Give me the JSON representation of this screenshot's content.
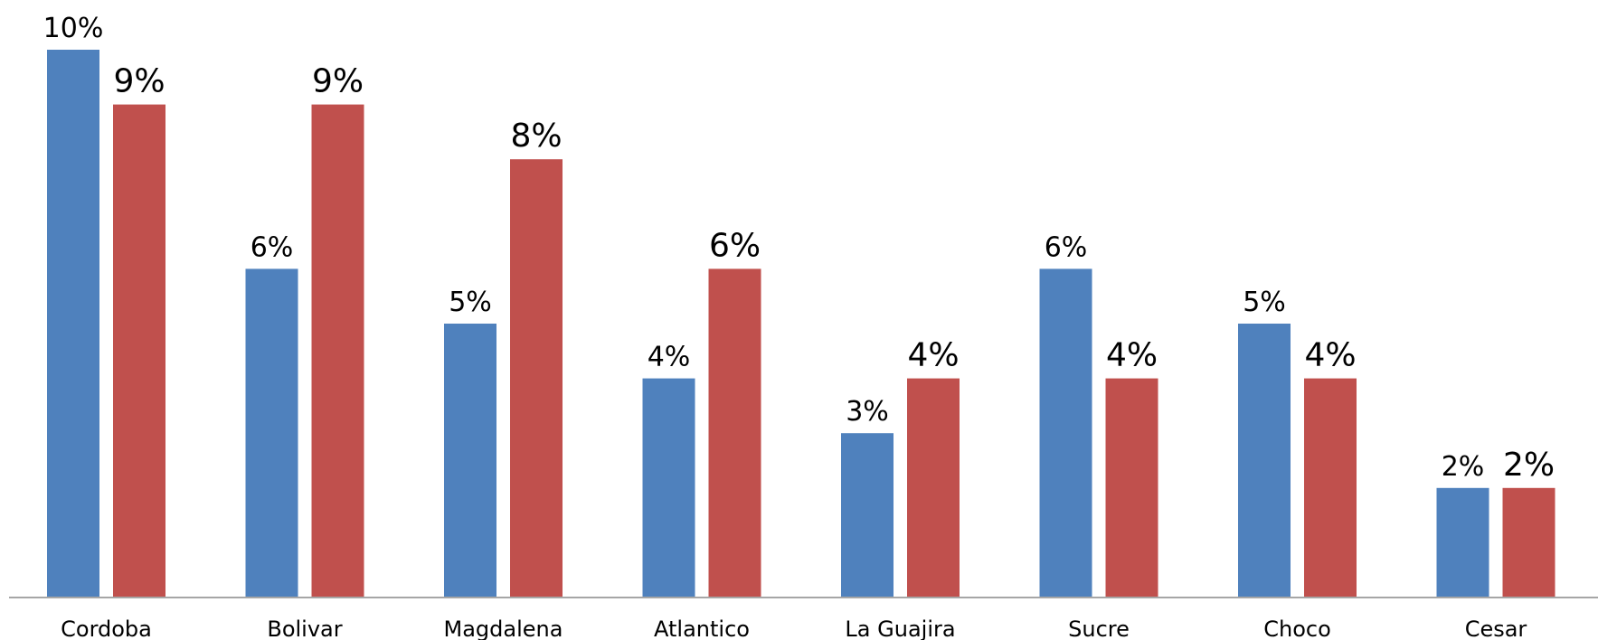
{
  "chart_data": {
    "type": "bar",
    "categories": [
      "Cordoba",
      "Bolivar",
      "Magdalena",
      "Atlantico",
      "La Guajira",
      "Sucre",
      "Choco",
      "Cesar"
    ],
    "series": [
      {
        "values": [
          10,
          6,
          5,
          4,
          3,
          6,
          5,
          2
        ],
        "labels": [
          "10%",
          "6%",
          "5%",
          "4%",
          "3%",
          "6%",
          "5%",
          "2%"
        ],
        "color": "#4F81BD"
      },
      {
        "values": [
          9,
          9,
          8,
          6,
          4,
          4,
          4,
          2
        ],
        "labels": [
          "9%",
          "9%",
          "8%",
          "6%",
          "4%",
          "4%",
          "4%",
          "2%"
        ],
        "color": "#C0504D"
      }
    ],
    "ylim": [
      0,
      10
    ],
    "grid": false,
    "legend": "none",
    "title": "",
    "xlabel": "",
    "ylabel": ""
  },
  "colors": {
    "axis": "#A6A6A6",
    "text": "#000000"
  }
}
